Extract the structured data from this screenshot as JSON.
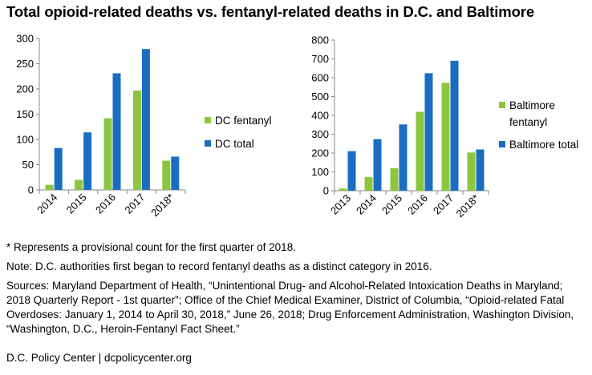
{
  "title": "Total opioid-related deaths vs. fentanyl-related deaths in D.C. and Baltimore",
  "colors": {
    "fentanyl": "#8cc63e",
    "total": "#1a6ec2",
    "axis": "#8a8a8a"
  },
  "chart_data": [
    {
      "type": "bar",
      "categories": [
        "2014",
        "2015",
        "2016",
        "2017",
        "2018*"
      ],
      "series": [
        {
          "name": "DC fentanyl",
          "values": [
            10,
            20,
            142,
            197,
            58
          ]
        },
        {
          "name": "DC total",
          "values": [
            83,
            114,
            231,
            279,
            66
          ]
        }
      ],
      "ylim": [
        0,
        300
      ],
      "yticks": [
        "0",
        "50",
        "100",
        "150",
        "200",
        "250",
        "300"
      ],
      "legend": "right",
      "grid": false
    },
    {
      "type": "bar",
      "categories": [
        "2013",
        "2014",
        "2015",
        "2016",
        "2017",
        "2018*"
      ],
      "series": [
        {
          "name": "Baltimore fentanyl",
          "values": [
            12,
            73,
            120,
            419,
            573,
            203
          ]
        },
        {
          "name": "Baltimore total",
          "values": [
            210,
            274,
            352,
            624,
            690,
            219
          ]
        }
      ],
      "ylim": [
        0,
        800
      ],
      "yticks": [
        "0",
        "100",
        "200",
        "300",
        "400",
        "500",
        "600",
        "700",
        "800"
      ],
      "legend": "right",
      "grid": false
    }
  ],
  "legend1": {
    "fentanyl": "DC fentanyl",
    "total": "DC total"
  },
  "legend2": {
    "fentanyl_line1": "Baltimore",
    "fentanyl_line2": "fentanyl",
    "total": "Baltimore total"
  },
  "notes": {
    "provisional": "* Represents a provisional count for the first quarter of 2018.",
    "note": "Note: D.C. authorities first began to record fentanyl deaths as a distinct category in 2016.",
    "sources": "Sources: Maryland Department of Health, “Unintentional Drug- and Alcohol-Related Intoxication Deaths in Maryland; 2018 Quarterly Report - 1st quarter”; Office of the Chief Medical Examiner, District of Columbia, “Opioid-related Fatal Overdoses: January 1, 2014 to April 30, 2018,” June 26, 2018; Drug Enforcement Administration, Washington Division, “Washington, D.C., Heroin-Fentanyl Fact Sheet.”"
  },
  "footer": "D.C. Policy Center  |  dcpolicycenter.org"
}
